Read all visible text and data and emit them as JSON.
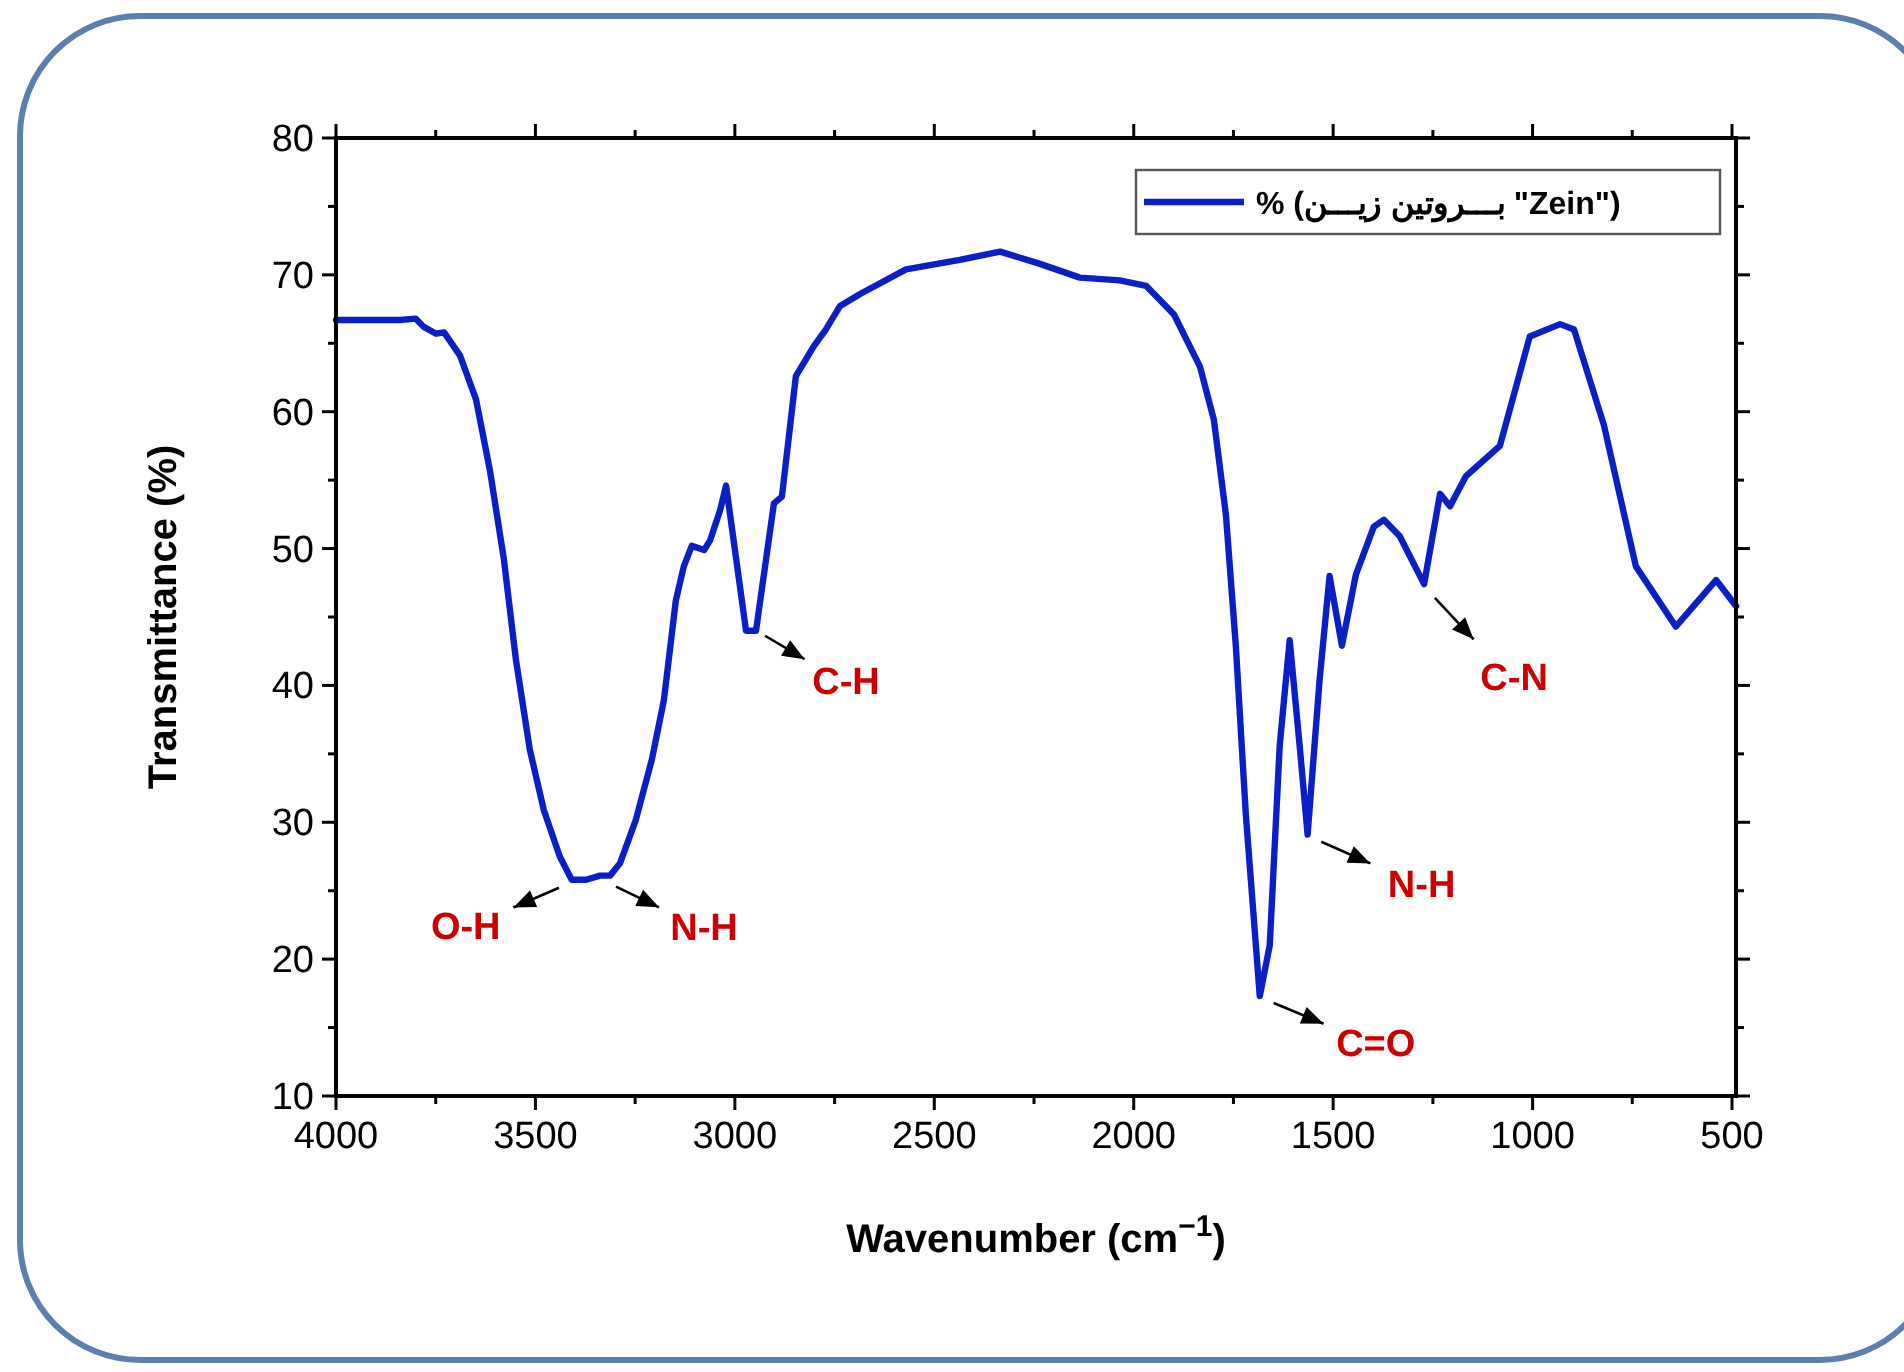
{
  "chart_data": {
    "type": "line",
    "xlabel": "Wavenumber (cm$^{−1}$)",
    "ylabel": "Transmittance (%)",
    "xlim": [
      4000,
      490
    ],
    "ylim": [
      10,
      80
    ],
    "xticks": [
      4000,
      {
        "value": 3750,
        "label": null
      },
      3500,
      {
        "value": 3250,
        "label": null
      },
      3000,
      {
        "value": 2750,
        "label": null
      },
      2500,
      {
        "value": 2250,
        "label": null
      },
      2000,
      {
        "value": 1750,
        "label": null
      },
      1500,
      {
        "value": 1250,
        "label": null
      },
      1000,
      {
        "value": 750,
        "label": null
      },
      500
    ],
    "yticks": [
      10,
      {
        "value": 15,
        "label": null
      },
      20,
      {
        "value": 25,
        "label": null
      },
      30,
      {
        "value": 35,
        "label": null
      },
      40,
      {
        "value": 45,
        "label": null
      },
      50,
      {
        "value": 55,
        "label": null
      },
      60,
      {
        "value": 65,
        "label": null
      },
      70,
      {
        "value": 75,
        "label": null
      },
      80
    ],
    "legend": "top right",
    "grid": false,
    "marker": "none",
    "line_style": "solid",
    "series": [
      {
        "name": "% (بـــروتين زيـــن \"Zein\")",
        "color": "#0b1fc6",
        "x": [
          4000,
          3840,
          3800,
          3780,
          3749,
          3729,
          3689,
          3649,
          3614,
          3579,
          3549,
          3514,
          3479,
          3439,
          3409,
          3373,
          3338,
          3313,
          3288,
          3248,
          3208,
          3178,
          3148,
          3128,
          3108,
          3077,
          3062,
          3037,
          3022,
          2972,
          2947,
          2902,
          2882,
          2847,
          2802,
          2772,
          2737,
          2686,
          2571,
          2436,
          2335,
          2235,
          2135,
          2035,
          1969,
          1899,
          1834,
          1799,
          1769,
          1744,
          1719,
          1684,
          1659,
          1634,
          1609,
          1584,
          1564,
          1534,
          1509,
          1478,
          1443,
          1398,
          1373,
          1333,
          1272,
          1232,
          1207,
          1167,
          1082,
          1007,
          931,
          896,
          821,
          741,
          641,
          540,
          490
        ],
        "values": [
          66.7,
          66.7,
          66.8,
          66.2,
          65.7,
          65.8,
          64.1,
          60.9,
          55.7,
          49.2,
          41.9,
          35.3,
          30.9,
          27.5,
          25.8,
          25.8,
          26.1,
          26.1,
          27.0,
          30.2,
          34.6,
          38.9,
          46.2,
          48.7,
          50.2,
          49.9,
          50.6,
          52.8,
          54.6,
          44.0,
          44.0,
          53.3,
          53.8,
          62.6,
          64.8,
          66.0,
          67.7,
          68.6,
          70.4,
          71.1,
          71.7,
          70.8,
          69.8,
          69.6,
          69.2,
          67.1,
          63.3,
          59.4,
          52.5,
          42.9,
          30.6,
          17.3,
          21.0,
          35.6,
          43.3,
          35.6,
          29.1,
          40.4,
          48.0,
          42.9,
          48.1,
          51.6,
          52.1,
          50.9,
          47.4,
          54.0,
          53.1,
          55.3,
          57.5,
          65.5,
          66.4,
          66.0,
          59.0,
          48.7,
          44.3,
          47.7,
          45.8
        ]
      }
    ],
    "annotations": [
      {
        "text": "O-H",
        "x": 3409,
        "y": 25.7
      },
      {
        "text": "N-H",
        "x": 3328,
        "y": 25.8
      },
      {
        "text": "C-H",
        "x": 2952,
        "y": 44.2
      },
      {
        "text": "C=O",
        "x": 1684,
        "y": 17.3
      },
      {
        "text": "N-H",
        "x": 1564,
        "y": 29.1
      },
      {
        "text": "C-N",
        "x": 1272,
        "y": 47.4
      }
    ]
  }
}
